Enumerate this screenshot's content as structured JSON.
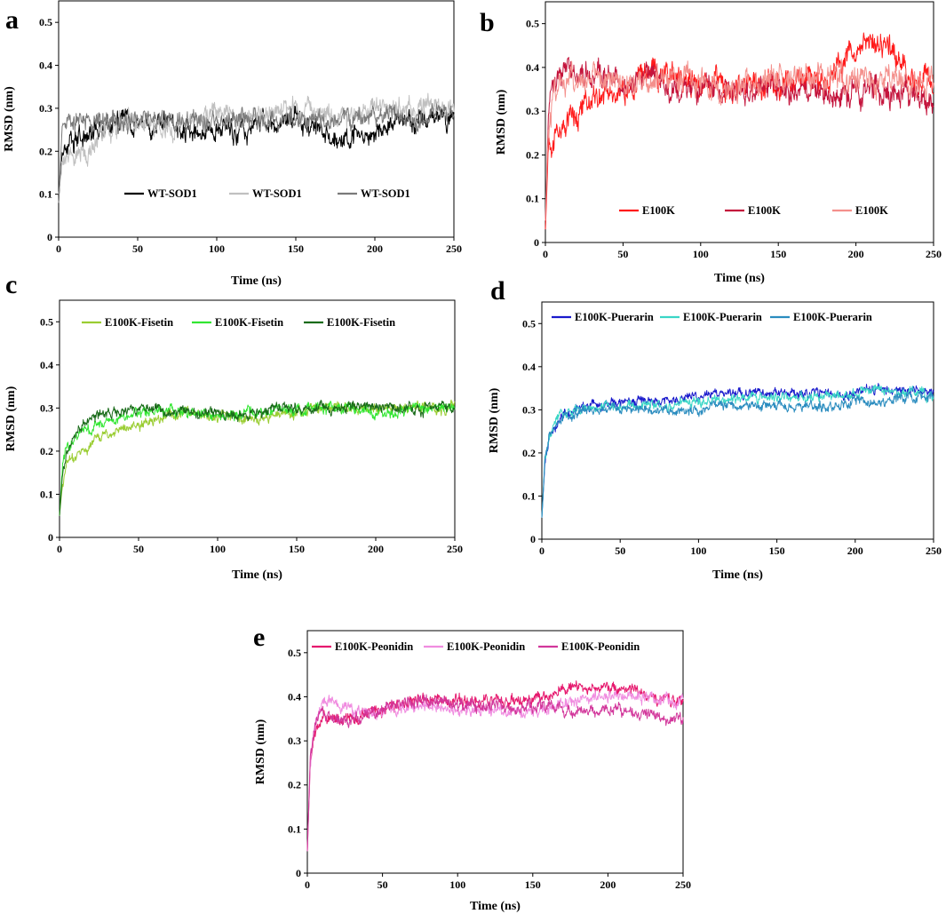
{
  "chart_data": [
    {
      "type": "line",
      "panel": "a",
      "xlabel": "Time (ns)",
      "ylabel": "RMSD (nm)",
      "xlim": [
        0,
        250
      ],
      "ylim": [
        0,
        0.55
      ],
      "xticks": [
        "0",
        "50",
        "100",
        "150",
        "200",
        "250"
      ],
      "yticks": [
        "0",
        "0.1",
        "0.2",
        "0.3",
        "0.4",
        "0.5"
      ],
      "legend": "bottom-center",
      "series": [
        {
          "name": "WT-SOD1",
          "color": "#000000",
          "x": [
            0,
            2,
            5,
            10,
            20,
            30,
            40,
            50,
            60,
            70,
            80,
            90,
            100,
            110,
            120,
            130,
            140,
            150,
            160,
            170,
            180,
            190,
            200,
            210,
            220,
            230,
            240,
            250
          ],
          "y": [
            0.08,
            0.21,
            0.22,
            0.23,
            0.24,
            0.26,
            0.28,
            0.26,
            0.26,
            0.27,
            0.25,
            0.25,
            0.25,
            0.25,
            0.25,
            0.26,
            0.27,
            0.28,
            0.26,
            0.24,
            0.22,
            0.24,
            0.26,
            0.26,
            0.27,
            0.27,
            0.28,
            0.28
          ],
          "noise": 0.025
        },
        {
          "name": "WT-SOD1",
          "color": "#c0c0c0",
          "x": [
            0,
            2,
            5,
            10,
            20,
            30,
            40,
            50,
            60,
            70,
            80,
            90,
            100,
            110,
            120,
            130,
            140,
            150,
            160,
            170,
            180,
            190,
            200,
            210,
            220,
            230,
            240,
            250
          ],
          "y": [
            0.1,
            0.16,
            0.18,
            0.19,
            0.2,
            0.25,
            0.26,
            0.27,
            0.26,
            0.25,
            0.27,
            0.28,
            0.29,
            0.28,
            0.28,
            0.29,
            0.3,
            0.3,
            0.29,
            0.29,
            0.29,
            0.29,
            0.3,
            0.3,
            0.3,
            0.3,
            0.3,
            0.31
          ],
          "noise": 0.025
        },
        {
          "name": "WT-SOD1",
          "color": "#7a7a7a",
          "x": [
            0,
            2,
            5,
            10,
            20,
            30,
            40,
            50,
            60,
            70,
            80,
            90,
            100,
            110,
            120,
            130,
            140,
            150,
            160,
            170,
            180,
            190,
            200,
            210,
            220,
            230,
            240,
            250
          ],
          "y": [
            0.08,
            0.24,
            0.26,
            0.27,
            0.27,
            0.27,
            0.27,
            0.27,
            0.27,
            0.27,
            0.26,
            0.27,
            0.27,
            0.27,
            0.27,
            0.27,
            0.27,
            0.28,
            0.28,
            0.27,
            0.27,
            0.28,
            0.28,
            0.29,
            0.28,
            0.28,
            0.29,
            0.29
          ],
          "noise": 0.022
        }
      ]
    },
    {
      "type": "line",
      "panel": "b",
      "xlabel": "Time (ns)",
      "ylabel": "RMSD (nm)",
      "xlim": [
        0,
        250
      ],
      "ylim": [
        0,
        0.55
      ],
      "xticks": [
        "0",
        "50",
        "100",
        "150",
        "200",
        "250"
      ],
      "yticks": [
        "0",
        "0.1",
        "0.2",
        "0.3",
        "0.4",
        "0.5"
      ],
      "legend": "bottom-center",
      "series": [
        {
          "name": "E100K",
          "color": "#ff1a1a",
          "x": [
            0,
            2,
            5,
            10,
            20,
            30,
            40,
            50,
            60,
            70,
            80,
            90,
            100,
            110,
            120,
            130,
            140,
            150,
            160,
            170,
            180,
            190,
            200,
            205,
            210,
            220,
            230,
            240,
            250
          ],
          "y": [
            0.03,
            0.22,
            0.24,
            0.26,
            0.3,
            0.33,
            0.34,
            0.35,
            0.37,
            0.38,
            0.38,
            0.37,
            0.36,
            0.36,
            0.35,
            0.37,
            0.36,
            0.36,
            0.37,
            0.37,
            0.37,
            0.4,
            0.43,
            0.47,
            0.46,
            0.45,
            0.41,
            0.38,
            0.38
          ],
          "noise": 0.03
        },
        {
          "name": "E100K",
          "color": "#c4143c",
          "x": [
            0,
            2,
            5,
            10,
            20,
            30,
            40,
            50,
            60,
            70,
            80,
            90,
            100,
            110,
            120,
            130,
            140,
            150,
            160,
            170,
            180,
            190,
            200,
            210,
            220,
            230,
            240,
            250
          ],
          "y": [
            0.05,
            0.3,
            0.36,
            0.4,
            0.4,
            0.38,
            0.38,
            0.37,
            0.37,
            0.36,
            0.35,
            0.36,
            0.35,
            0.35,
            0.34,
            0.34,
            0.35,
            0.34,
            0.35,
            0.35,
            0.34,
            0.34,
            0.35,
            0.34,
            0.34,
            0.34,
            0.34,
            0.33
          ],
          "noise": 0.03
        },
        {
          "name": "E100K",
          "color": "#f4908c",
          "x": [
            0,
            2,
            5,
            10,
            20,
            30,
            40,
            50,
            60,
            70,
            80,
            90,
            100,
            110,
            120,
            130,
            140,
            150,
            160,
            170,
            180,
            190,
            200,
            210,
            220,
            230,
            240,
            250
          ],
          "y": [
            0.05,
            0.28,
            0.34,
            0.36,
            0.37,
            0.38,
            0.37,
            0.37,
            0.36,
            0.37,
            0.37,
            0.38,
            0.36,
            0.35,
            0.36,
            0.37,
            0.38,
            0.38,
            0.37,
            0.38,
            0.38,
            0.37,
            0.37,
            0.37,
            0.38,
            0.37,
            0.36,
            0.37
          ],
          "noise": 0.03
        }
      ]
    },
    {
      "type": "line",
      "panel": "c",
      "xlabel": "Time (ns)",
      "ylabel": "RMSD (nm)",
      "xlim": [
        0,
        250
      ],
      "ylim": [
        0,
        0.55
      ],
      "xticks": [
        "0",
        "50",
        "100",
        "150",
        "200",
        "250"
      ],
      "yticks": [
        "0",
        "0.1",
        "0.2",
        "0.3",
        "0.4",
        "0.5"
      ],
      "legend": "top-center",
      "series": [
        {
          "name": "E100K-Fisetin",
          "color": "#9acd32",
          "x": [
            0,
            2,
            5,
            10,
            15,
            20,
            30,
            40,
            50,
            60,
            70,
            80,
            90,
            100,
            110,
            120,
            130,
            140,
            150,
            160,
            170,
            180,
            190,
            200,
            210,
            220,
            230,
            240,
            250
          ],
          "y": [
            0.05,
            0.13,
            0.17,
            0.19,
            0.2,
            0.22,
            0.24,
            0.25,
            0.26,
            0.27,
            0.28,
            0.29,
            0.28,
            0.28,
            0.28,
            0.27,
            0.28,
            0.29,
            0.29,
            0.3,
            0.3,
            0.3,
            0.3,
            0.3,
            0.3,
            0.3,
            0.3,
            0.3,
            0.3
          ],
          "noise": 0.012
        },
        {
          "name": "E100K-Fisetin",
          "color": "#32e632",
          "x": [
            0,
            2,
            5,
            10,
            15,
            20,
            30,
            40,
            50,
            60,
            70,
            80,
            90,
            100,
            110,
            120,
            130,
            140,
            150,
            160,
            170,
            180,
            190,
            200,
            210,
            220,
            230,
            240,
            250
          ],
          "y": [
            0.05,
            0.18,
            0.21,
            0.23,
            0.24,
            0.25,
            0.27,
            0.28,
            0.29,
            0.29,
            0.29,
            0.29,
            0.29,
            0.28,
            0.28,
            0.29,
            0.29,
            0.3,
            0.3,
            0.3,
            0.3,
            0.3,
            0.3,
            0.29,
            0.29,
            0.3,
            0.3,
            0.3,
            0.3
          ],
          "noise": 0.012
        },
        {
          "name": "E100K-Fisetin",
          "color": "#1a6b1a",
          "x": [
            0,
            2,
            5,
            10,
            15,
            20,
            30,
            40,
            50,
            60,
            70,
            80,
            90,
            100,
            110,
            120,
            130,
            140,
            150,
            160,
            170,
            180,
            190,
            200,
            210,
            220,
            230,
            240,
            250
          ],
          "y": [
            0.05,
            0.15,
            0.2,
            0.24,
            0.26,
            0.28,
            0.29,
            0.29,
            0.3,
            0.3,
            0.29,
            0.29,
            0.29,
            0.29,
            0.28,
            0.29,
            0.29,
            0.3,
            0.3,
            0.3,
            0.3,
            0.3,
            0.3,
            0.3,
            0.3,
            0.3,
            0.3,
            0.3,
            0.3
          ],
          "noise": 0.012
        }
      ]
    },
    {
      "type": "line",
      "panel": "d",
      "xlabel": "Time (ns)",
      "ylabel": "RMSD (nm)",
      "xlim": [
        0,
        250
      ],
      "ylim": [
        0,
        0.55
      ],
      "xticks": [
        "0",
        "50",
        "100",
        "150",
        "200",
        "250"
      ],
      "yticks": [
        "0",
        "0.1",
        "0.2",
        "0.3",
        "0.4",
        "0.5"
      ],
      "legend": "top-center",
      "series": [
        {
          "name": "E100K-Puerarin",
          "color": "#1a1acc",
          "x": [
            0,
            2,
            5,
            10,
            15,
            20,
            30,
            40,
            50,
            60,
            70,
            80,
            90,
            100,
            110,
            120,
            130,
            140,
            150,
            160,
            170,
            180,
            190,
            200,
            210,
            220,
            230,
            240,
            250
          ],
          "y": [
            0.05,
            0.18,
            0.24,
            0.27,
            0.29,
            0.3,
            0.31,
            0.31,
            0.32,
            0.32,
            0.32,
            0.32,
            0.33,
            0.33,
            0.34,
            0.34,
            0.34,
            0.34,
            0.34,
            0.34,
            0.34,
            0.34,
            0.33,
            0.34,
            0.35,
            0.34,
            0.35,
            0.34,
            0.34
          ],
          "noise": 0.011
        },
        {
          "name": "E100K-Puerarin",
          "color": "#3ad6c6",
          "x": [
            0,
            2,
            5,
            10,
            15,
            20,
            30,
            40,
            50,
            60,
            70,
            80,
            90,
            100,
            110,
            120,
            130,
            140,
            150,
            160,
            170,
            180,
            190,
            200,
            210,
            220,
            230,
            240,
            250
          ],
          "y": [
            0.05,
            0.19,
            0.24,
            0.28,
            0.29,
            0.3,
            0.3,
            0.31,
            0.31,
            0.31,
            0.31,
            0.31,
            0.32,
            0.32,
            0.32,
            0.33,
            0.32,
            0.33,
            0.33,
            0.33,
            0.33,
            0.33,
            0.33,
            0.34,
            0.35,
            0.34,
            0.34,
            0.34,
            0.33
          ],
          "noise": 0.011
        },
        {
          "name": "E100K-Puerarin",
          "color": "#2a8cbf",
          "x": [
            0,
            2,
            5,
            10,
            15,
            20,
            30,
            40,
            50,
            60,
            70,
            80,
            90,
            100,
            110,
            120,
            130,
            140,
            150,
            160,
            170,
            180,
            190,
            200,
            210,
            220,
            230,
            240,
            250
          ],
          "y": [
            0.05,
            0.19,
            0.24,
            0.27,
            0.28,
            0.29,
            0.3,
            0.3,
            0.3,
            0.3,
            0.3,
            0.3,
            0.3,
            0.3,
            0.31,
            0.31,
            0.31,
            0.31,
            0.31,
            0.31,
            0.31,
            0.31,
            0.31,
            0.32,
            0.32,
            0.32,
            0.33,
            0.33,
            0.33
          ],
          "noise": 0.011
        }
      ]
    },
    {
      "type": "line",
      "panel": "e",
      "xlabel": "Time (ns)",
      "ylabel": "RMSD (nm)",
      "xlim": [
        0,
        250
      ],
      "ylim": [
        0,
        0.55
      ],
      "xticks": [
        "0",
        "50",
        "100",
        "150",
        "200",
        "250"
      ],
      "yticks": [
        "0",
        "0.1",
        "0.2",
        "0.3",
        "0.4",
        "0.5"
      ],
      "legend": "top-center",
      "series": [
        {
          "name": "E100K-Peonidin",
          "color": "#e6196e",
          "x": [
            0,
            2,
            5,
            10,
            15,
            20,
            30,
            40,
            50,
            60,
            70,
            80,
            90,
            100,
            110,
            120,
            130,
            140,
            150,
            160,
            170,
            180,
            190,
            200,
            210,
            220,
            230,
            240,
            250
          ],
          "y": [
            0.05,
            0.25,
            0.32,
            0.35,
            0.35,
            0.35,
            0.35,
            0.36,
            0.37,
            0.38,
            0.39,
            0.39,
            0.39,
            0.39,
            0.39,
            0.39,
            0.39,
            0.39,
            0.39,
            0.4,
            0.42,
            0.42,
            0.42,
            0.42,
            0.42,
            0.41,
            0.4,
            0.39,
            0.39
          ],
          "noise": 0.013
        },
        {
          "name": "E100K-Peonidin",
          "color": "#f08ce0",
          "x": [
            0,
            2,
            5,
            10,
            15,
            20,
            30,
            40,
            50,
            60,
            70,
            80,
            90,
            100,
            110,
            120,
            130,
            140,
            150,
            160,
            170,
            180,
            190,
            200,
            210,
            220,
            230,
            240,
            250
          ],
          "y": [
            0.05,
            0.25,
            0.33,
            0.38,
            0.4,
            0.38,
            0.37,
            0.37,
            0.37,
            0.37,
            0.38,
            0.38,
            0.37,
            0.37,
            0.37,
            0.37,
            0.37,
            0.37,
            0.37,
            0.37,
            0.38,
            0.39,
            0.4,
            0.4,
            0.4,
            0.4,
            0.4,
            0.39,
            0.39
          ],
          "noise": 0.013
        },
        {
          "name": "E100K-Peonidin",
          "color": "#d2379b",
          "x": [
            0,
            2,
            5,
            10,
            15,
            20,
            30,
            40,
            50,
            60,
            70,
            80,
            90,
            100,
            110,
            120,
            130,
            140,
            150,
            160,
            170,
            180,
            190,
            200,
            210,
            220,
            230,
            240,
            250
          ],
          "y": [
            0.05,
            0.27,
            0.34,
            0.36,
            0.35,
            0.35,
            0.35,
            0.36,
            0.37,
            0.38,
            0.39,
            0.39,
            0.39,
            0.38,
            0.38,
            0.38,
            0.38,
            0.38,
            0.38,
            0.38,
            0.37,
            0.37,
            0.37,
            0.37,
            0.37,
            0.36,
            0.36,
            0.35,
            0.35
          ],
          "noise": 0.013
        }
      ]
    }
  ]
}
